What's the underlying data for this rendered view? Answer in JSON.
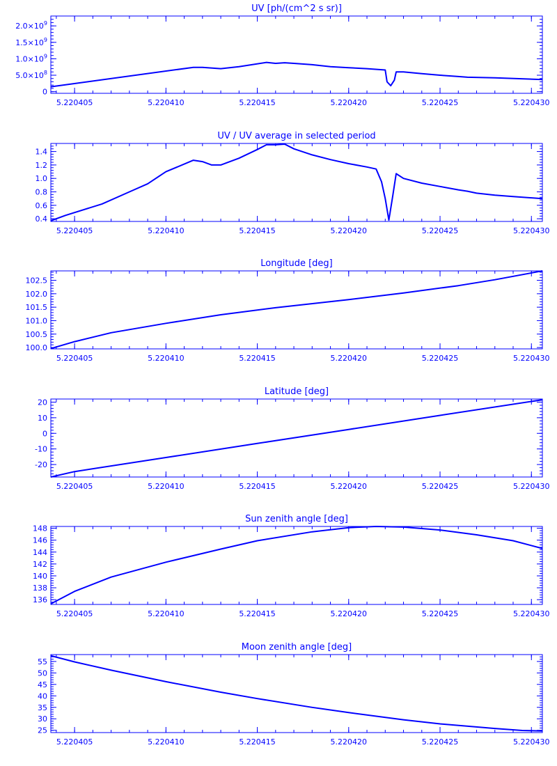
{
  "figure": {
    "line_color": "#0000ff",
    "background": "#ffffff"
  },
  "chart_data": [
    {
      "type": "line",
      "title": "UV [ph/(cm^2 s sr)]",
      "xlim": [
        5.2204037,
        5.2204306
      ],
      "x_ticks": [
        5.220405,
        5.22041,
        5.220415,
        5.22042,
        5.220425,
        5.22043
      ],
      "x_tick_labels": [
        "5.220405",
        "5.220410",
        "5.220415",
        "5.220420",
        "5.220425",
        "5.220430"
      ],
      "ylim": [
        -0.05,
        2.3
      ],
      "y_ticks": [
        0,
        0.5,
        1.0,
        1.5,
        2.0
      ],
      "y_tick_labels": [
        {
          "mant": "0",
          "exp": ""
        },
        {
          "mant": "5.0×10",
          "exp": "8"
        },
        {
          "mant": "1.0×10",
          "exp": "9"
        },
        {
          "mant": "1.5×10",
          "exp": "9"
        },
        {
          "mant": "2.0×10",
          "exp": "9"
        }
      ],
      "y_unit_note": "values in units of 1e9",
      "x": [
        5.2204037,
        5.2204115,
        5.220412,
        5.220413,
        5.220414,
        5.2204155,
        5.220416,
        5.2204165,
        5.220417,
        5.220418,
        5.220419,
        5.22042,
        5.220421,
        5.220422,
        5.2204221,
        5.2204223,
        5.2204225,
        5.2204226,
        5.220423,
        5.220424,
        5.220425,
        5.220426,
        5.2204265,
        5.220428,
        5.2204306
      ],
      "y": [
        0.15,
        0.74,
        0.74,
        0.7,
        0.76,
        0.89,
        0.86,
        0.88,
        0.86,
        0.82,
        0.76,
        0.73,
        0.7,
        0.66,
        0.3,
        0.18,
        0.35,
        0.6,
        0.6,
        0.55,
        0.5,
        0.46,
        0.44,
        0.42,
        0.37
      ]
    },
    {
      "type": "line",
      "title": "UV / UV average in selected period",
      "xlim": [
        5.2204037,
        5.2204306
      ],
      "x_ticks": [
        5.220405,
        5.22041,
        5.220415,
        5.22042,
        5.220425,
        5.22043
      ],
      "x_tick_labels": [
        "5.220405",
        "5.220410",
        "5.220415",
        "5.220420",
        "5.220425",
        "5.220430"
      ],
      "ylim": [
        0.36,
        1.52
      ],
      "y_ticks": [
        0.4,
        0.6,
        0.8,
        1.0,
        1.2,
        1.4
      ],
      "y_tick_labels": [
        "0.4",
        "0.6",
        "0.8",
        "1.0",
        "1.2",
        "1.4"
      ],
      "x": [
        5.2204037,
        5.2204045,
        5.2204065,
        5.220408,
        5.220409,
        5.22041,
        5.2204115,
        5.220412,
        5.2204125,
        5.220413,
        5.220414,
        5.220415,
        5.2204155,
        5.220416,
        5.2204165,
        5.220417,
        5.220418,
        5.220419,
        5.22042,
        5.220421,
        5.2204215,
        5.2204218,
        5.220422,
        5.2204222,
        5.2204224,
        5.2204226,
        5.220423,
        5.220424,
        5.220425,
        5.220426,
        5.2204265,
        5.220427,
        5.220428,
        5.220429,
        5.2204306
      ],
      "y": [
        0.37,
        0.45,
        0.62,
        0.8,
        0.92,
        1.1,
        1.27,
        1.25,
        1.2,
        1.2,
        1.3,
        1.43,
        1.5,
        1.5,
        1.51,
        1.44,
        1.35,
        1.28,
        1.22,
        1.17,
        1.14,
        0.95,
        0.7,
        0.38,
        0.72,
        1.07,
        1.0,
        0.93,
        0.88,
        0.83,
        0.81,
        0.78,
        0.75,
        0.73,
        0.7
      ]
    },
    {
      "type": "line",
      "title": "Longitude [deg]",
      "xlim": [
        5.2204037,
        5.2204306
      ],
      "x_ticks": [
        5.220405,
        5.22041,
        5.220415,
        5.22042,
        5.220425,
        5.22043
      ],
      "x_tick_labels": [
        "5.220405",
        "5.220410",
        "5.220415",
        "5.220420",
        "5.220425",
        "5.220430"
      ],
      "ylim": [
        99.95,
        102.85
      ],
      "y_ticks": [
        100.0,
        100.5,
        101.0,
        101.5,
        102.0,
        102.5
      ],
      "y_tick_labels": [
        "100.0",
        "100.5",
        "101.0",
        "101.5",
        "102.0",
        "102.5"
      ],
      "x": [
        5.2204037,
        5.220405,
        5.220407,
        5.22041,
        5.220413,
        5.220416,
        5.22042,
        5.220423,
        5.220426,
        5.220428,
        5.2204306
      ],
      "y": [
        99.96,
        100.22,
        100.55,
        100.9,
        101.22,
        101.48,
        101.78,
        102.03,
        102.3,
        102.52,
        102.85
      ]
    },
    {
      "type": "line",
      "title": "Latitude [deg]",
      "xlim": [
        5.2204037,
        5.2204306
      ],
      "x_ticks": [
        5.220405,
        5.22041,
        5.220415,
        5.22042,
        5.220425,
        5.22043
      ],
      "x_tick_labels": [
        "5.220405",
        "5.220410",
        "5.220415",
        "5.220420",
        "5.220425",
        "5.220430"
      ],
      "ylim": [
        -28,
        22
      ],
      "y_ticks": [
        -20,
        -10,
        0,
        10,
        20
      ],
      "y_tick_labels": [
        "-20",
        "-10",
        "0",
        "10",
        "20"
      ],
      "x": [
        5.2204037,
        5.220405,
        5.22041,
        5.220415,
        5.22042,
        5.220425,
        5.2204306
      ],
      "y": [
        -28,
        -24.5,
        -15.5,
        -6.5,
        2.5,
        11.5,
        21.5
      ]
    },
    {
      "type": "line",
      "title": "Sun zenith angle [deg]",
      "xlim": [
        5.2204037,
        5.2204306
      ],
      "x_ticks": [
        5.220405,
        5.22041,
        5.220415,
        5.22042,
        5.220425,
        5.22043
      ],
      "x_tick_labels": [
        "5.220405",
        "5.220410",
        "5.220415",
        "5.220420",
        "5.220425",
        "5.220430"
      ],
      "ylim": [
        135.2,
        148.3
      ],
      "y_ticks": [
        136,
        138,
        140,
        142,
        144,
        146,
        148
      ],
      "y_tick_labels": [
        "136",
        "138",
        "140",
        "142",
        "144",
        "146",
        "148"
      ],
      "x": [
        5.2204037,
        5.220405,
        5.220407,
        5.22041,
        5.220413,
        5.220415,
        5.220418,
        5.22042,
        5.2204215,
        5.220423,
        5.220425,
        5.220427,
        5.220429,
        5.2204306
      ],
      "y": [
        135.3,
        137.4,
        139.8,
        142.3,
        144.5,
        145.9,
        147.4,
        148.1,
        148.3,
        148.2,
        147.7,
        146.9,
        145.9,
        144.6
      ]
    },
    {
      "type": "line",
      "title": "Moon zenith angle [deg]",
      "xlim": [
        5.2204037,
        5.2204306
      ],
      "x_ticks": [
        5.220405,
        5.22041,
        5.220415,
        5.22042,
        5.220425,
        5.22043
      ],
      "x_tick_labels": [
        "5.220405",
        "5.220410",
        "5.220415",
        "5.220420",
        "5.220425",
        "5.220430"
      ],
      "ylim": [
        24,
        58
      ],
      "y_ticks": [
        25,
        30,
        35,
        40,
        45,
        50,
        55
      ],
      "y_tick_labels": [
        "25",
        "30",
        "35",
        "40",
        "45",
        "50",
        "55"
      ],
      "x": [
        5.2204037,
        5.220405,
        5.220407,
        5.22041,
        5.220413,
        5.220415,
        5.220418,
        5.22042,
        5.220423,
        5.220425,
        5.220428,
        5.2204295,
        5.2204306
      ],
      "y": [
        57.5,
        54.8,
        51.2,
        46.2,
        41.6,
        38.8,
        35.0,
        32.7,
        29.6,
        27.8,
        25.8,
        24.9,
        24.7
      ]
    }
  ]
}
